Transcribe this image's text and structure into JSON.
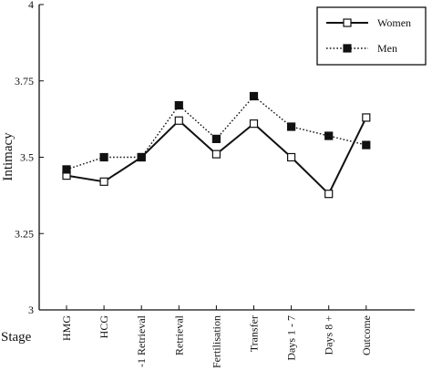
{
  "chart_data": {
    "type": "line",
    "title": "",
    "xlabel": "Stage",
    "ylabel": "Intimacy",
    "ylim": [
      3,
      4
    ],
    "yticks": [
      "3",
      "3.25",
      "3.5",
      "3.75",
      "4"
    ],
    "ytick_values": [
      3,
      3.25,
      3.5,
      3.75,
      4
    ],
    "categories": [
      "HMG",
      "HCG",
      "-1 Retrieval",
      "Retrieval",
      "Fertilisation",
      "Transfer",
      "Days 1 - 7",
      "Days 8 +",
      "Outcome"
    ],
    "series": [
      {
        "name": "Women",
        "line_style": "solid",
        "marker": "open-square",
        "values": [
          3.44,
          3.42,
          3.5,
          3.62,
          3.51,
          3.61,
          3.5,
          3.38,
          3.63
        ]
      },
      {
        "name": "Men",
        "line_style": "dotted",
        "marker": "filled-square",
        "values": [
          3.46,
          3.5,
          3.5,
          3.67,
          3.56,
          3.7,
          3.6,
          3.57,
          3.54
        ]
      }
    ],
    "legend_position": "top-right",
    "grid": false
  }
}
